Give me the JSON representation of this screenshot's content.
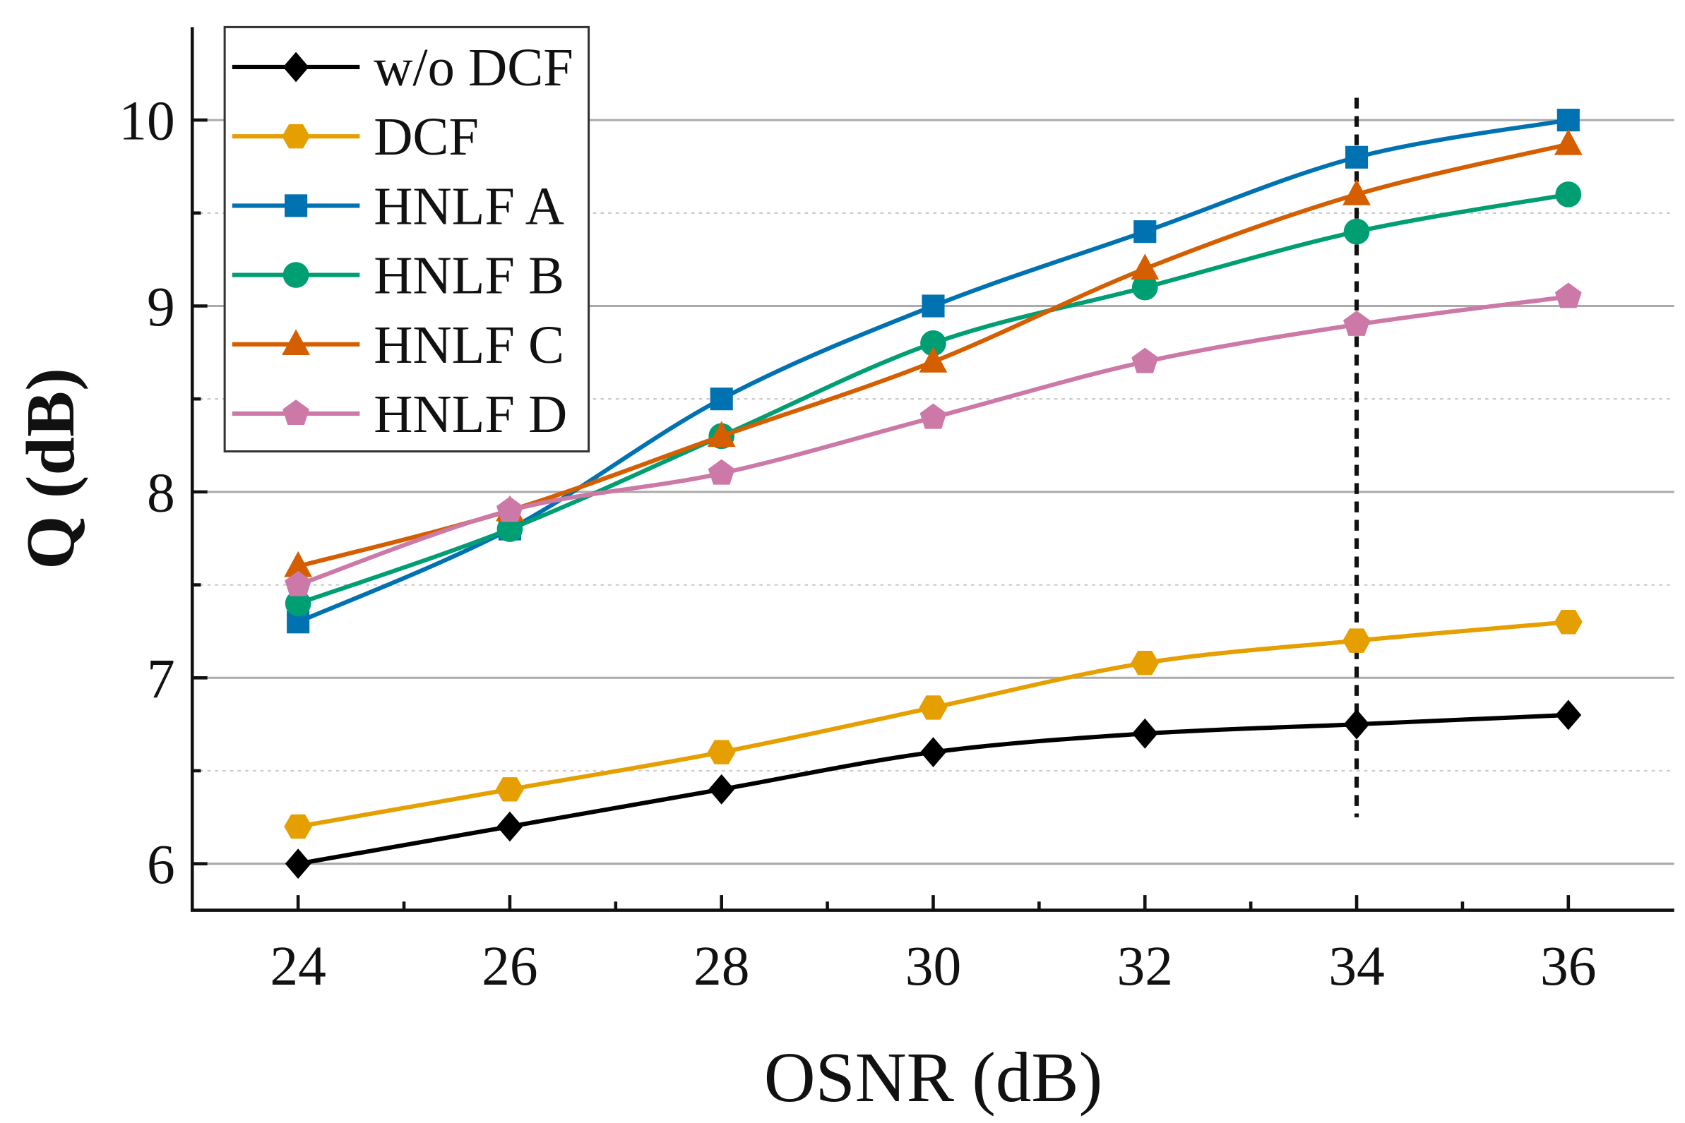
{
  "chart_data": {
    "type": "line",
    "title": "",
    "xlabel": "OSNR (dB)",
    "ylabel": "Q (dB)",
    "xlim": [
      23,
      37
    ],
    "ylim": [
      5.75,
      10.5
    ],
    "xticks": [
      24,
      26,
      28,
      30,
      32,
      34,
      36
    ],
    "xtick_labels": [
      "24",
      "26",
      "28",
      "30",
      "32",
      "34",
      "36"
    ],
    "yticks": [
      6,
      7,
      8,
      9,
      10
    ],
    "ytick_labels": [
      "6",
      "7",
      "8",
      "9",
      "10"
    ],
    "grid": "major solid, minor dotted (horizontal)",
    "legend_position": "top-left",
    "x": [
      24,
      26,
      28,
      30,
      32,
      34,
      36
    ],
    "series": [
      {
        "name": "w/o DCF",
        "color": "#000000",
        "marker": "diamond",
        "values": [
          6.0,
          6.2,
          6.4,
          6.6,
          6.7,
          6.75,
          6.8
        ]
      },
      {
        "name": "DCF",
        "color": "#E69F00",
        "marker": "hexagon",
        "values": [
          6.2,
          6.4,
          6.6,
          6.84,
          7.08,
          7.2,
          7.3
        ]
      },
      {
        "name": "HNLF A",
        "color": "#0072B2",
        "marker": "square",
        "values": [
          7.3,
          7.8,
          8.5,
          9.0,
          9.4,
          9.8,
          10.0
        ]
      },
      {
        "name": "HNLF B",
        "color": "#009E73",
        "marker": "circle",
        "values": [
          7.4,
          7.8,
          8.3,
          8.8,
          9.1,
          9.4,
          9.6
        ]
      },
      {
        "name": "HNLF C",
        "color": "#D55E00",
        "marker": "triangle",
        "values": [
          7.6,
          7.9,
          8.3,
          8.7,
          9.2,
          9.6,
          9.87
        ]
      },
      {
        "name": "HNLF D",
        "color": "#CC79A7",
        "marker": "pentagon",
        "values": [
          7.5,
          7.9,
          8.1,
          8.4,
          8.7,
          8.9,
          9.05
        ]
      }
    ],
    "annotations": [
      {
        "type": "vertical-dashed-line",
        "x": 34,
        "y_range": [
          6.25,
          10.12
        ]
      }
    ]
  }
}
